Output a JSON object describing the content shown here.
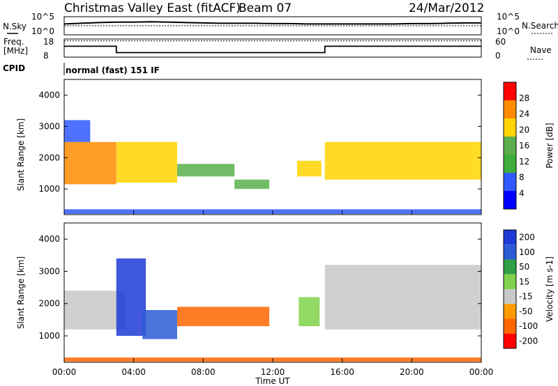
{
  "header": {
    "title": "Christmas Valley East (fitACF)",
    "beam": "Beam 07",
    "date": "24/Mar/2012"
  },
  "summary_labels": {
    "nsky": "N.Sky",
    "nsearch": "N.Search",
    "freq_line1": "Freq.",
    "freq_line2": "[MHz]",
    "nave": "Nave",
    "cpid": "CPID",
    "cpid_value": "normal (fast) 151 IF",
    "noise_ticks": [
      "10^5",
      "10^0"
    ],
    "freq_ticks": [
      "18",
      "8"
    ],
    "nave_ticks": [
      "60",
      "0"
    ]
  },
  "chart_data": [
    {
      "type": "line",
      "title": "",
      "series": [
        {
          "name": "N.Sky",
          "x": [
            0,
            1,
            2,
            3,
            4,
            5,
            6,
            7,
            8,
            9,
            10,
            11,
            12,
            13,
            14,
            15,
            16,
            17,
            18,
            19,
            20,
            21,
            22,
            23,
            24
          ],
          "values": [
            3,
            3.2,
            3.4,
            3.5,
            3.5,
            3.6,
            3.5,
            3.4,
            3.3,
            3.2,
            3.2,
            3.2,
            3.1,
            3.1,
            3.0,
            3.0,
            3.0,
            3.0,
            3.0,
            3.0,
            3.1,
            3.1,
            3.2,
            3.3,
            3.3
          ]
        },
        {
          "name": "N.Search",
          "x": [
            0,
            12,
            24
          ],
          "values": [
            2.5,
            2.5,
            2.5
          ]
        }
      ],
      "ylim": [
        0,
        5
      ],
      "ytick_labels": [
        "10^0",
        "10^5"
      ]
    },
    {
      "type": "line",
      "series": [
        {
          "name": "Freq.",
          "x": [
            0,
            3,
            3,
            15,
            15,
            24
          ],
          "values": [
            14,
            14,
            10.5,
            10.5,
            14,
            14
          ]
        },
        {
          "name": "Nave",
          "x": [
            0,
            24
          ],
          "values": [
            17,
            17
          ]
        }
      ],
      "ylim": [
        8,
        18
      ]
    },
    {
      "type": "heatmap",
      "ylabel": "Slant Range [km]",
      "xlim": [
        0,
        24
      ],
      "ylim": [
        180,
        4500
      ],
      "yticks": [
        1000,
        2000,
        3000,
        4000
      ],
      "colorbar": {
        "label": "Power [dB]",
        "min": 0,
        "max": 32,
        "ticks": [
          4,
          8,
          12,
          16,
          20,
          24,
          28
        ]
      },
      "regions": [
        {
          "x0": 0.0,
          "x1": 3.0,
          "y0": 1150,
          "y1": 2500,
          "value": 24
        },
        {
          "x0": 0.0,
          "x1": 1.5,
          "y0": 2500,
          "y1": 3200,
          "value": 8
        },
        {
          "x0": 3.0,
          "x1": 6.5,
          "y0": 1200,
          "y1": 2500,
          "value": 22
        },
        {
          "x0": 6.5,
          "x1": 9.8,
          "y0": 1400,
          "y1": 1800,
          "value": 14
        },
        {
          "x0": 9.8,
          "x1": 11.8,
          "y0": 1000,
          "y1": 1300,
          "value": 16
        },
        {
          "x0": 13.4,
          "x1": 14.8,
          "y0": 1400,
          "y1": 1900,
          "value": 20
        },
        {
          "x0": 15.0,
          "x1": 24.0,
          "y0": 1300,
          "y1": 2500,
          "value": 22
        },
        {
          "x0": 0.0,
          "x1": 24.0,
          "y0": 200,
          "y1": 350,
          "value": 6
        }
      ]
    },
    {
      "type": "heatmap",
      "ylabel": "Slant Range [km]",
      "xlabel": "Time UT",
      "xlim": [
        0,
        24
      ],
      "ylim": [
        180,
        4500
      ],
      "yticks": [
        1000,
        2000,
        3000,
        4000
      ],
      "xtick_labels": [
        "00:00",
        "04:00",
        "08:00",
        "12:00",
        "16:00",
        "20:00",
        "00:00"
      ],
      "colorbar": {
        "label": "Velocity [m s-1]",
        "tick_labels": [
          "200",
          "100",
          "50",
          "15",
          "-15",
          "-50",
          "-100",
          "-200"
        ]
      },
      "regions": [
        {
          "x0": 0.0,
          "x1": 3.5,
          "y0": 1200,
          "y1": 2400,
          "value": 0
        },
        {
          "x0": 3.0,
          "x1": 4.7,
          "y0": 1000,
          "y1": 3400,
          "value": 200
        },
        {
          "x0": 4.5,
          "x1": 6.5,
          "y0": 900,
          "y1": 1800,
          "value": 150
        },
        {
          "x0": 6.5,
          "x1": 11.8,
          "y0": 1300,
          "y1": 1900,
          "value": -70
        },
        {
          "x0": 13.5,
          "x1": 14.7,
          "y0": 1300,
          "y1": 2200,
          "value": 30
        },
        {
          "x0": 15.0,
          "x1": 24.0,
          "y0": 1200,
          "y1": 3200,
          "value": 0
        },
        {
          "x0": 0.0,
          "x1": 24.0,
          "y0": 200,
          "y1": 330,
          "value": -60
        }
      ]
    }
  ],
  "colors": {
    "power_scale": [
      "#0000ff",
      "#2f59ff",
      "#3fae3c",
      "#5ab04c",
      "#ffd400",
      "#ff8c00",
      "#ff0000"
    ],
    "velocity_scale": [
      "#1f3bd6",
      "#2b5bd6",
      "#2fa045",
      "#7fd24a",
      "#c8c8c8",
      "#ff9a00",
      "#ff6600",
      "#ff0000"
    ]
  }
}
